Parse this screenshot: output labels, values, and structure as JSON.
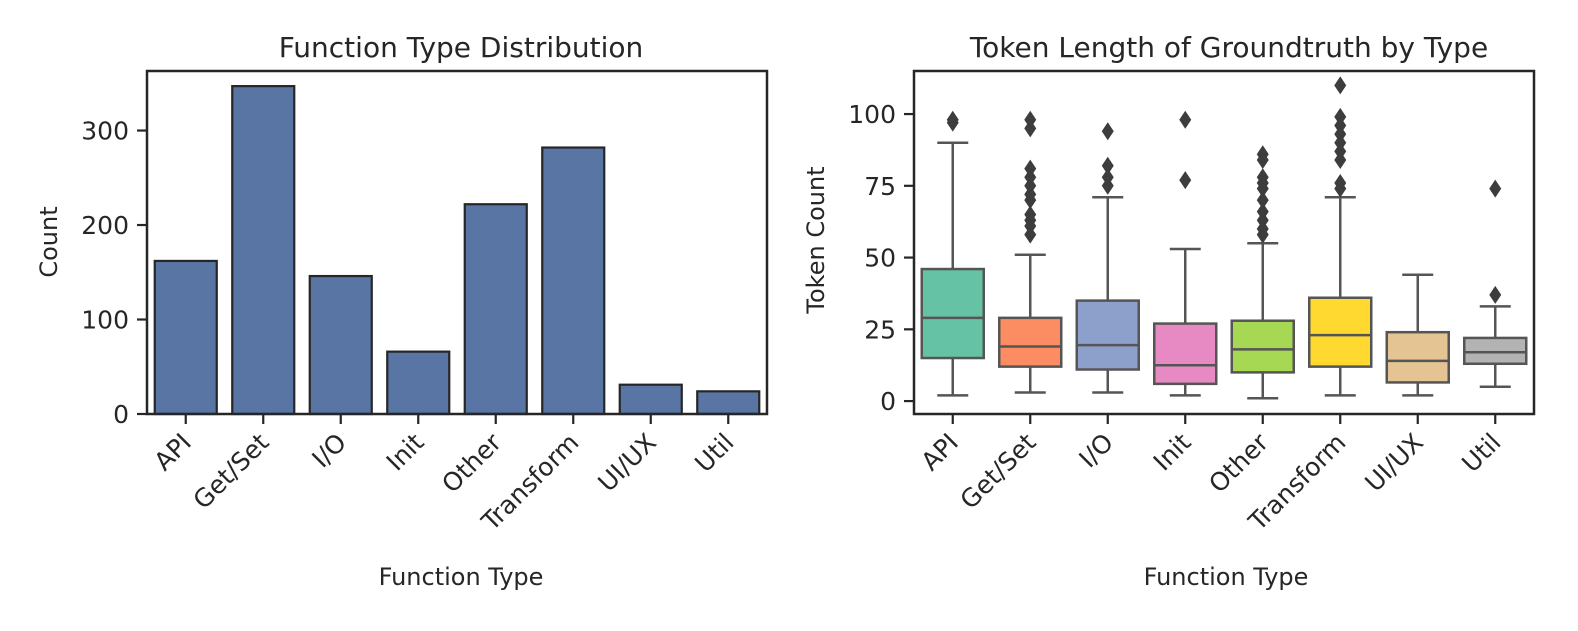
{
  "chart_data": [
    {
      "type": "bar",
      "title": "Function Type Distribution",
      "xlabel": "Function Type",
      "ylabel": "Count",
      "categories": [
        "API",
        "Get/Set",
        "I/O",
        "Init",
        "Other",
        "Transform",
        "UI/UX",
        "Util"
      ],
      "values": [
        162,
        347,
        146,
        66,
        222,
        282,
        31,
        24
      ],
      "ylim": [
        0,
        363
      ],
      "yticks": [
        0,
        100,
        200,
        300
      ],
      "color": "#5875a4"
    },
    {
      "type": "box",
      "title": "Token Length of Groundtruth by Type",
      "xlabel": "Function Type",
      "ylabel": "Token Count",
      "ylim": [
        -4.5,
        115
      ],
      "yticks": [
        0,
        25,
        50,
        75,
        100
      ],
      "categories": [
        "API",
        "Get/Set",
        "I/O",
        "Init",
        "Other",
        "Transform",
        "UI/UX",
        "Util"
      ],
      "colors": [
        "#66c2a5",
        "#fc8d62",
        "#8da0cb",
        "#e78ac3",
        "#a6d854",
        "#ffd92f",
        "#e5c494",
        "#b3b3b3"
      ],
      "boxes": [
        {
          "category": "API",
          "whislo": 2,
          "q1": 15,
          "median": 29,
          "q3": 46,
          "whishi": 90,
          "fliers": [
            97,
            98
          ]
        },
        {
          "category": "Get/Set",
          "whislo": 3,
          "q1": 12,
          "median": 19,
          "q3": 29,
          "whishi": 51,
          "fliers": [
            58,
            61,
            63,
            65,
            70,
            72,
            75,
            78,
            81,
            95,
            98
          ]
        },
        {
          "category": "I/O",
          "whislo": 3,
          "q1": 11,
          "median": 19.5,
          "q3": 35,
          "whishi": 71,
          "fliers": [
            75,
            78,
            82,
            94
          ]
        },
        {
          "category": "Init",
          "whislo": 2,
          "q1": 6,
          "median": 12.5,
          "q3": 27,
          "whishi": 53,
          "fliers": [
            77,
            98
          ]
        },
        {
          "category": "Other",
          "whislo": 1,
          "q1": 10,
          "median": 18,
          "q3": 28,
          "whishi": 55,
          "fliers": [
            58,
            60,
            63,
            66,
            70,
            74,
            76,
            78,
            84,
            86
          ]
        },
        {
          "category": "Transform",
          "whislo": 2,
          "q1": 12,
          "median": 23,
          "q3": 36,
          "whishi": 71,
          "fliers": [
            74,
            76,
            84,
            87,
            90,
            93,
            96,
            99,
            110
          ]
        },
        {
          "category": "UI/UX",
          "whislo": 2,
          "q1": 6.5,
          "median": 14,
          "q3": 24,
          "whishi": 44,
          "fliers": []
        },
        {
          "category": "Util",
          "whislo": 5,
          "q1": 13,
          "median": 17,
          "q3": 22,
          "whishi": 33,
          "fliers": [
            37,
            74
          ]
        }
      ]
    }
  ]
}
